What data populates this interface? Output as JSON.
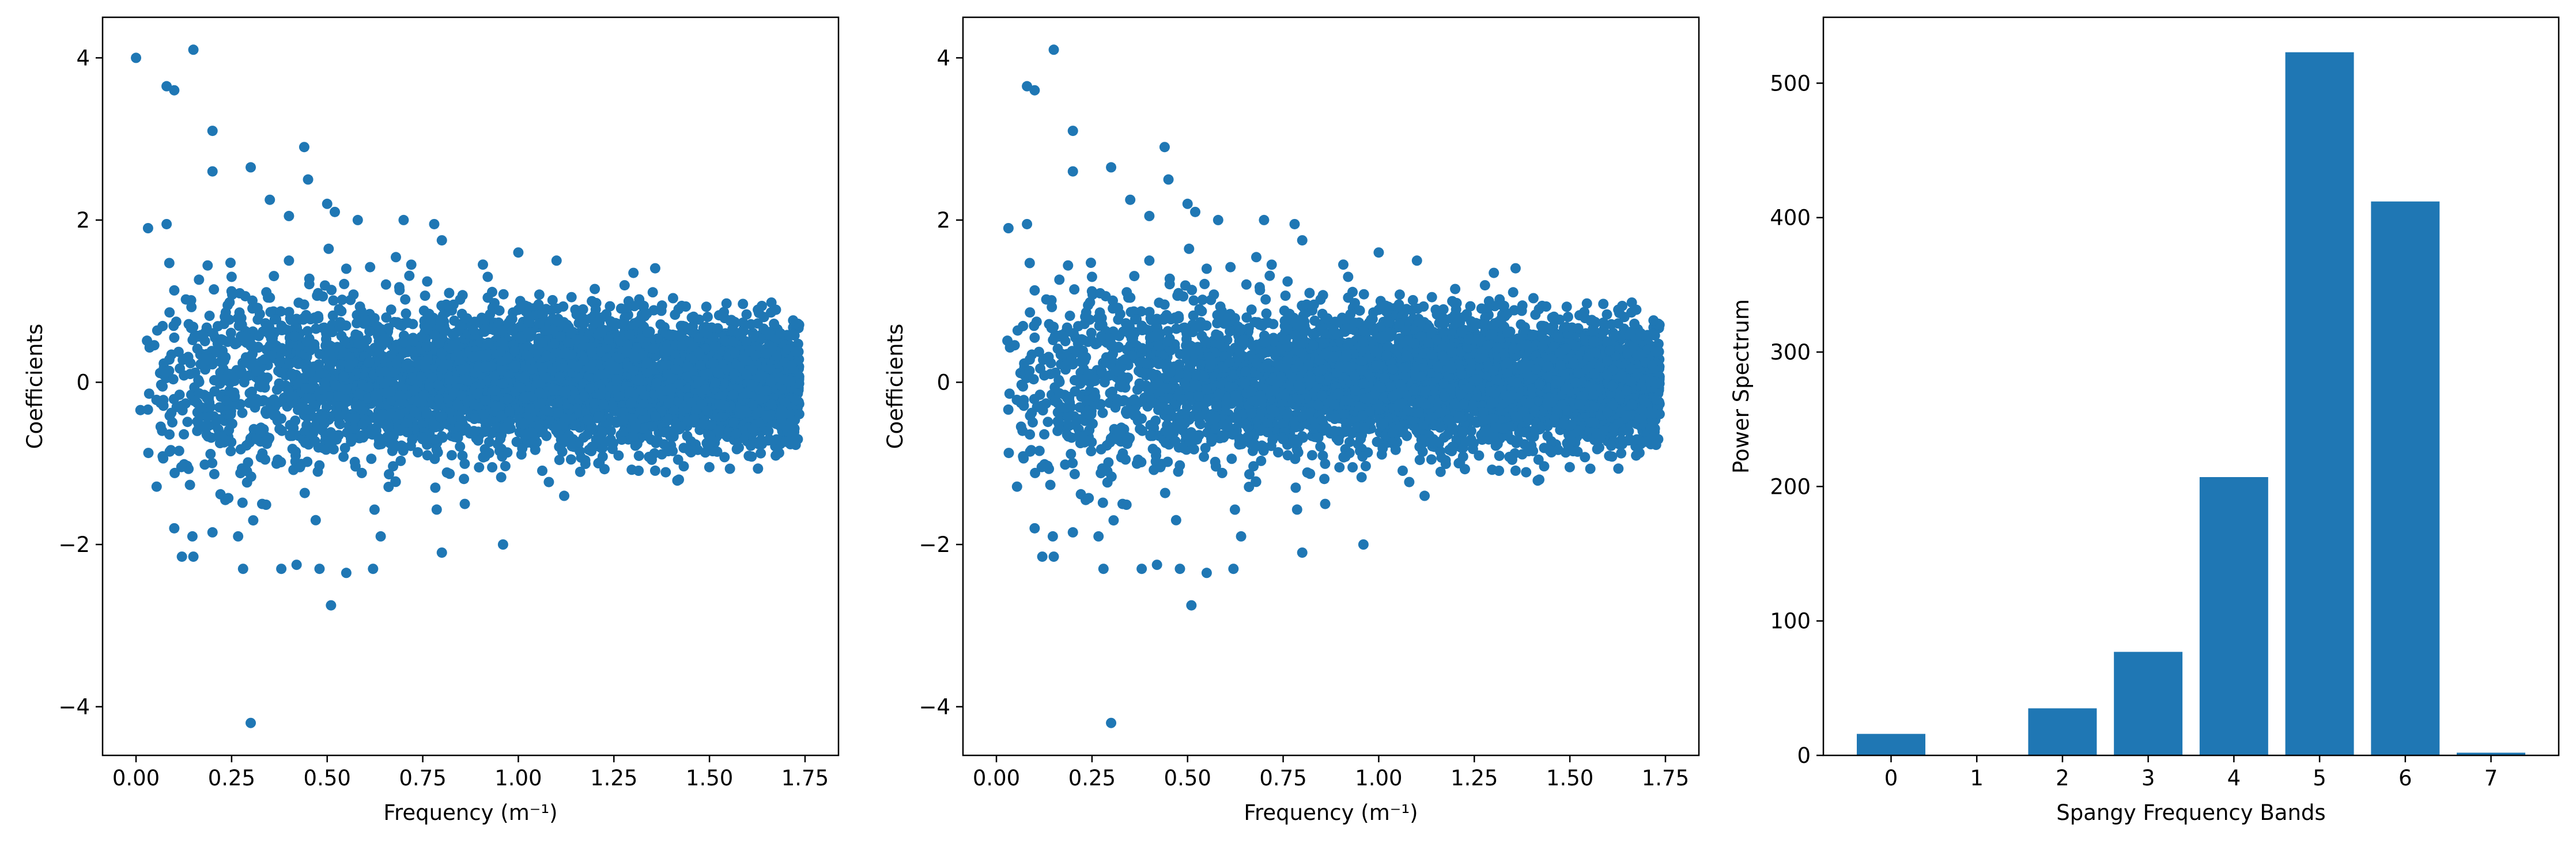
{
  "chart_data": [
    {
      "type": "scatter",
      "xlabel": "Frequency (m⁻¹)",
      "ylabel": "Coefficients",
      "xlim": [
        -0.0875,
        1.8375
      ],
      "ylim": [
        -4.6,
        4.5
      ],
      "xticks": [
        0.0,
        0.25,
        0.5,
        0.75,
        1.0,
        1.25,
        1.5,
        1.75
      ],
      "xtick_labels": [
        "0.00",
        "0.25",
        "0.50",
        "0.75",
        "1.00",
        "1.25",
        "1.50",
        "1.75"
      ],
      "yticks": [
        -4,
        -2,
        0,
        2,
        4
      ],
      "ytick_labels": [
        "−4",
        "−2",
        "0",
        "2",
        "4"
      ],
      "color": "#1f77b4",
      "series": [
        {
          "x": [
            0.0,
            0.08,
            0.1,
            0.15,
            0.2,
            0.2,
            0.3,
            0.44,
            0.45,
            0.08,
            0.35,
            0.4,
            0.5,
            0.52,
            0.58,
            0.7,
            0.78,
            0.8,
            1.0,
            1.1,
            0.3,
            0.51,
            0.8,
            0.96,
            0.1,
            0.12,
            0.15,
            0.2,
            0.28,
            0.38,
            0.42,
            0.48,
            0.55,
            0.62,
            0.1,
            0.16,
            0.25,
            0.33,
            0.4,
            0.47,
            0.55,
            0.64,
            0.72,
            0.86,
            0.92,
            1.12,
            1.2,
            1.42
          ],
          "y": [
            4.0,
            3.65,
            3.6,
            4.1,
            3.1,
            2.6,
            2.65,
            2.9,
            2.5,
            1.95,
            2.25,
            2.05,
            2.2,
            2.1,
            2.0,
            2.0,
            1.95,
            1.75,
            1.6,
            1.5,
            -4.2,
            -2.75,
            -2.1,
            -2.0,
            -1.8,
            -2.15,
            -2.15,
            -1.85,
            -2.3,
            -2.3,
            -2.25,
            -2.3,
            -2.35,
            -2.3,
            0.55,
            -0.6,
            1.3,
            -1.5,
            1.5,
            -1.7,
            1.4,
            -1.9,
            1.45,
            -1.5,
            1.3,
            -1.4,
            1.15,
            -1.2
          ]
        }
      ]
    },
    {
      "type": "scatter",
      "xlabel": "Frequency (m⁻¹)",
      "ylabel": "Coefficients",
      "xlim": [
        -0.0875,
        1.8375
      ],
      "ylim": [
        -4.6,
        4.5
      ],
      "xticks": [
        0.0,
        0.25,
        0.5,
        0.75,
        1.0,
        1.25,
        1.5,
        1.75
      ],
      "xtick_labels": [
        "0.00",
        "0.25",
        "0.50",
        "0.75",
        "1.00",
        "1.25",
        "1.50",
        "1.75"
      ],
      "yticks": [
        -4,
        -2,
        0,
        2,
        4
      ],
      "ytick_labels": [
        "−4",
        "−2",
        "0",
        "2",
        "4"
      ],
      "color": "#1f77b4",
      "series": [
        {
          "x": [
            0.08,
            0.1,
            0.15,
            0.2,
            0.2,
            0.3,
            0.44,
            0.45,
            0.08,
            0.35,
            0.4,
            0.5,
            0.52,
            0.58,
            0.7,
            0.78,
            0.8,
            1.0,
            1.1,
            0.3,
            0.51,
            0.8,
            0.96,
            0.1,
            0.12,
            0.15,
            0.2,
            0.28,
            0.38,
            0.42,
            0.48,
            0.55,
            0.62,
            0.1,
            0.16,
            0.25,
            0.33,
            0.4,
            0.47,
            0.55,
            0.64,
            0.72,
            0.86,
            0.92,
            1.12,
            1.2,
            1.42
          ],
          "y": [
            3.65,
            3.6,
            4.1,
            3.1,
            2.6,
            2.65,
            2.9,
            2.5,
            1.95,
            2.25,
            2.05,
            2.2,
            2.1,
            2.0,
            2.0,
            1.95,
            1.75,
            1.6,
            1.5,
            -4.2,
            -2.75,
            -2.1,
            -2.0,
            -1.8,
            -2.15,
            -2.15,
            -1.85,
            -2.3,
            -2.3,
            -2.25,
            -2.3,
            -2.35,
            -2.3,
            0.55,
            -0.6,
            1.3,
            -1.5,
            1.5,
            -1.7,
            1.4,
            -1.9,
            1.45,
            -1.5,
            1.3,
            -1.4,
            1.15,
            -1.2
          ]
        }
      ]
    },
    {
      "type": "bar",
      "xlabel": "Spangy Frequency Bands",
      "ylabel": "Power Spectrum",
      "categories": [
        "0",
        "1",
        "2",
        "3",
        "4",
        "5",
        "6",
        "7"
      ],
      "values": [
        16,
        0,
        35,
        77,
        207,
        523,
        412,
        2
      ],
      "ylim": [
        0,
        549
      ],
      "yticks": [
        0,
        100,
        200,
        300,
        400,
        500
      ],
      "ytick_labels": [
        "0",
        "100",
        "200",
        "300",
        "400",
        "500"
      ],
      "color": "#1f77b4"
    }
  ]
}
